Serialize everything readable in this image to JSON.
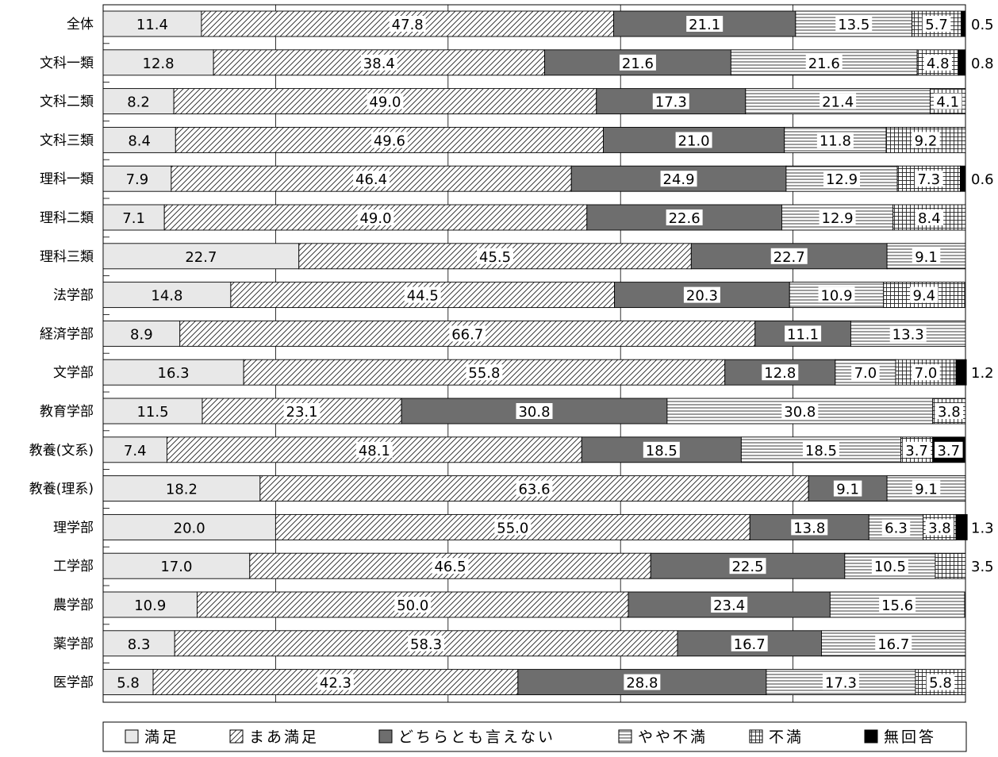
{
  "chart_data": {
    "type": "bar",
    "orientation": "horizontal",
    "stacked": true,
    "percent": true,
    "grid": true,
    "legend_position": "bottom",
    "categories": [
      "全体",
      "文科一類",
      "文科二類",
      "文科三類",
      "理科一類",
      "理科二類",
      "理科三類",
      "法学部",
      "経済学部",
      "文学部",
      "教育学部",
      "教養(文系)",
      "教養(理系)",
      "理学部",
      "工学部",
      "農学部",
      "薬学部",
      "医学部"
    ],
    "series": [
      {
        "name": "満足",
        "pattern": "solid-light",
        "color": "#e8e8e8",
        "values": [
          11.4,
          12.8,
          8.2,
          8.4,
          7.9,
          7.1,
          22.7,
          14.8,
          8.9,
          16.3,
          11.5,
          7.4,
          18.2,
          20.0,
          17.0,
          10.9,
          8.3,
          5.8
        ]
      },
      {
        "name": "まあ満足",
        "pattern": "diagonal",
        "color": "#ffffff",
        "values": [
          47.8,
          38.4,
          49.0,
          49.6,
          46.4,
          49.0,
          45.5,
          44.5,
          66.7,
          55.8,
          23.1,
          48.1,
          63.6,
          55.0,
          46.5,
          50.0,
          58.3,
          42.3
        ]
      },
      {
        "name": "どちらとも言えない",
        "pattern": "solid-dark",
        "color": "#6e6e6e",
        "values": [
          21.1,
          21.6,
          17.3,
          21.0,
          24.9,
          22.6,
          22.7,
          20.3,
          11.1,
          12.8,
          30.8,
          18.5,
          9.1,
          13.8,
          22.5,
          23.4,
          16.7,
          28.8
        ]
      },
      {
        "name": "やや不満",
        "pattern": "horizontal",
        "color": "#ffffff",
        "values": [
          13.5,
          21.6,
          21.4,
          11.8,
          12.9,
          12.9,
          9.1,
          10.9,
          13.3,
          7.0,
          30.8,
          18.5,
          9.1,
          6.3,
          10.5,
          15.6,
          16.7,
          17.3
        ]
      },
      {
        "name": "不満",
        "pattern": "grid",
        "color": "#ffffff",
        "values": [
          5.7,
          4.8,
          4.1,
          9.2,
          7.3,
          8.4,
          0,
          9.4,
          0,
          7.0,
          3.8,
          3.7,
          0,
          3.8,
          3.5,
          0,
          0,
          5.8
        ]
      },
      {
        "name": "無回答",
        "pattern": "solid-black",
        "color": "#000000",
        "values": [
          0.5,
          0.8,
          0,
          0,
          0.6,
          0,
          0,
          0,
          0,
          1.2,
          0,
          3.7,
          0,
          1.3,
          0,
          0,
          0,
          0
        ]
      }
    ],
    "inside_labels": [
      [
        "11.4",
        "47.8",
        "21.1",
        "13.5",
        "5.7",
        ""
      ],
      [
        "12.8",
        "38.4",
        "21.6",
        "21.6",
        "4.8",
        ""
      ],
      [
        "8.2",
        "49.0",
        "17.3",
        "21.4",
        "4.1",
        ""
      ],
      [
        "8.4",
        "49.6",
        "21.0",
        "11.8",
        "9.2",
        ""
      ],
      [
        "7.9",
        "46.4",
        "24.9",
        "12.9",
        "7.3",
        ""
      ],
      [
        "7.1",
        "49.0",
        "22.6",
        "12.9",
        "8.4",
        ""
      ],
      [
        "22.7",
        "45.5",
        "22.7",
        "9.1",
        "",
        ""
      ],
      [
        "14.8",
        "44.5",
        "20.3",
        "10.9",
        "9.4",
        ""
      ],
      [
        "8.9",
        "66.7",
        "11.1",
        "13.3",
        "",
        ""
      ],
      [
        "16.3",
        "55.8",
        "12.8",
        "7.0",
        "7.0",
        ""
      ],
      [
        "11.5",
        "23.1",
        "30.8",
        "30.8",
        "3.8",
        ""
      ],
      [
        "7.4",
        "48.1",
        "18.5",
        "18.5",
        "3.7",
        "3.7"
      ],
      [
        "18.2",
        "63.6",
        "9.1",
        "9.1",
        "",
        ""
      ],
      [
        "20.0",
        "55.0",
        "13.8",
        "6.3",
        "3.8",
        ""
      ],
      [
        "17.0",
        "46.5",
        "22.5",
        "10.5",
        "",
        ""
      ],
      [
        "10.9",
        "50.0",
        "23.4",
        "15.6",
        "",
        ""
      ],
      [
        "8.3",
        "58.3",
        "16.7",
        "16.7",
        "",
        ""
      ],
      [
        "5.8",
        "42.3",
        "28.8",
        "17.3",
        "5.8",
        ""
      ]
    ],
    "outside_labels": [
      "0.5",
      "0.8",
      "",
      "",
      "0.6",
      "",
      "",
      "",
      "",
      "1.2",
      "",
      "",
      "",
      "1.3",
      "3.5",
      "",
      "",
      ""
    ],
    "xlim": [
      0,
      100
    ]
  }
}
